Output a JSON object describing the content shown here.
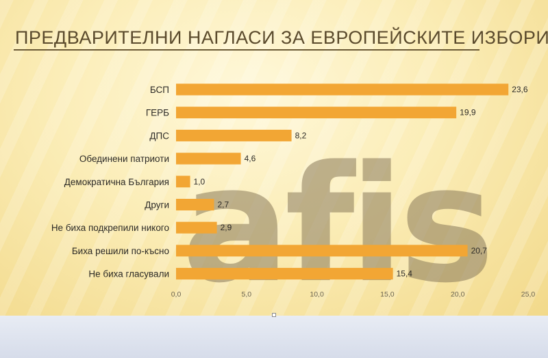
{
  "title": "ПРЕДВАРИТЕЛНИ НАГЛАСИ ЗА ЕВРОПЕЙСКИТЕ ИЗБОРИ",
  "watermark": "afis",
  "colors": {
    "bar": "#f2a634",
    "title": "#5a4a2c"
  },
  "chart_data": {
    "type": "bar",
    "orientation": "horizontal",
    "categories": [
      "БСП",
      "ГЕРБ",
      "ДПС",
      "Обединени патриоти",
      "Демократична България",
      "Други",
      "Не биха подкрепили никого",
      "Биха решили по-късно",
      "Не биха гласували"
    ],
    "values": [
      23.6,
      19.9,
      8.2,
      4.6,
      1.0,
      2.7,
      2.9,
      20.7,
      15.4
    ],
    "value_labels": [
      "23,6",
      "19,9",
      "8,2",
      "4,6",
      "1,0",
      "2,7",
      "2,9",
      "20,7",
      "15,4"
    ],
    "xlim": [
      0,
      25
    ],
    "ticks": [
      0,
      5,
      10,
      15,
      20,
      25
    ],
    "tick_labels": [
      "0,0",
      "5,0",
      "10,0",
      "15,0",
      "20,0",
      "25,0"
    ],
    "grid": false,
    "legend": "none"
  }
}
